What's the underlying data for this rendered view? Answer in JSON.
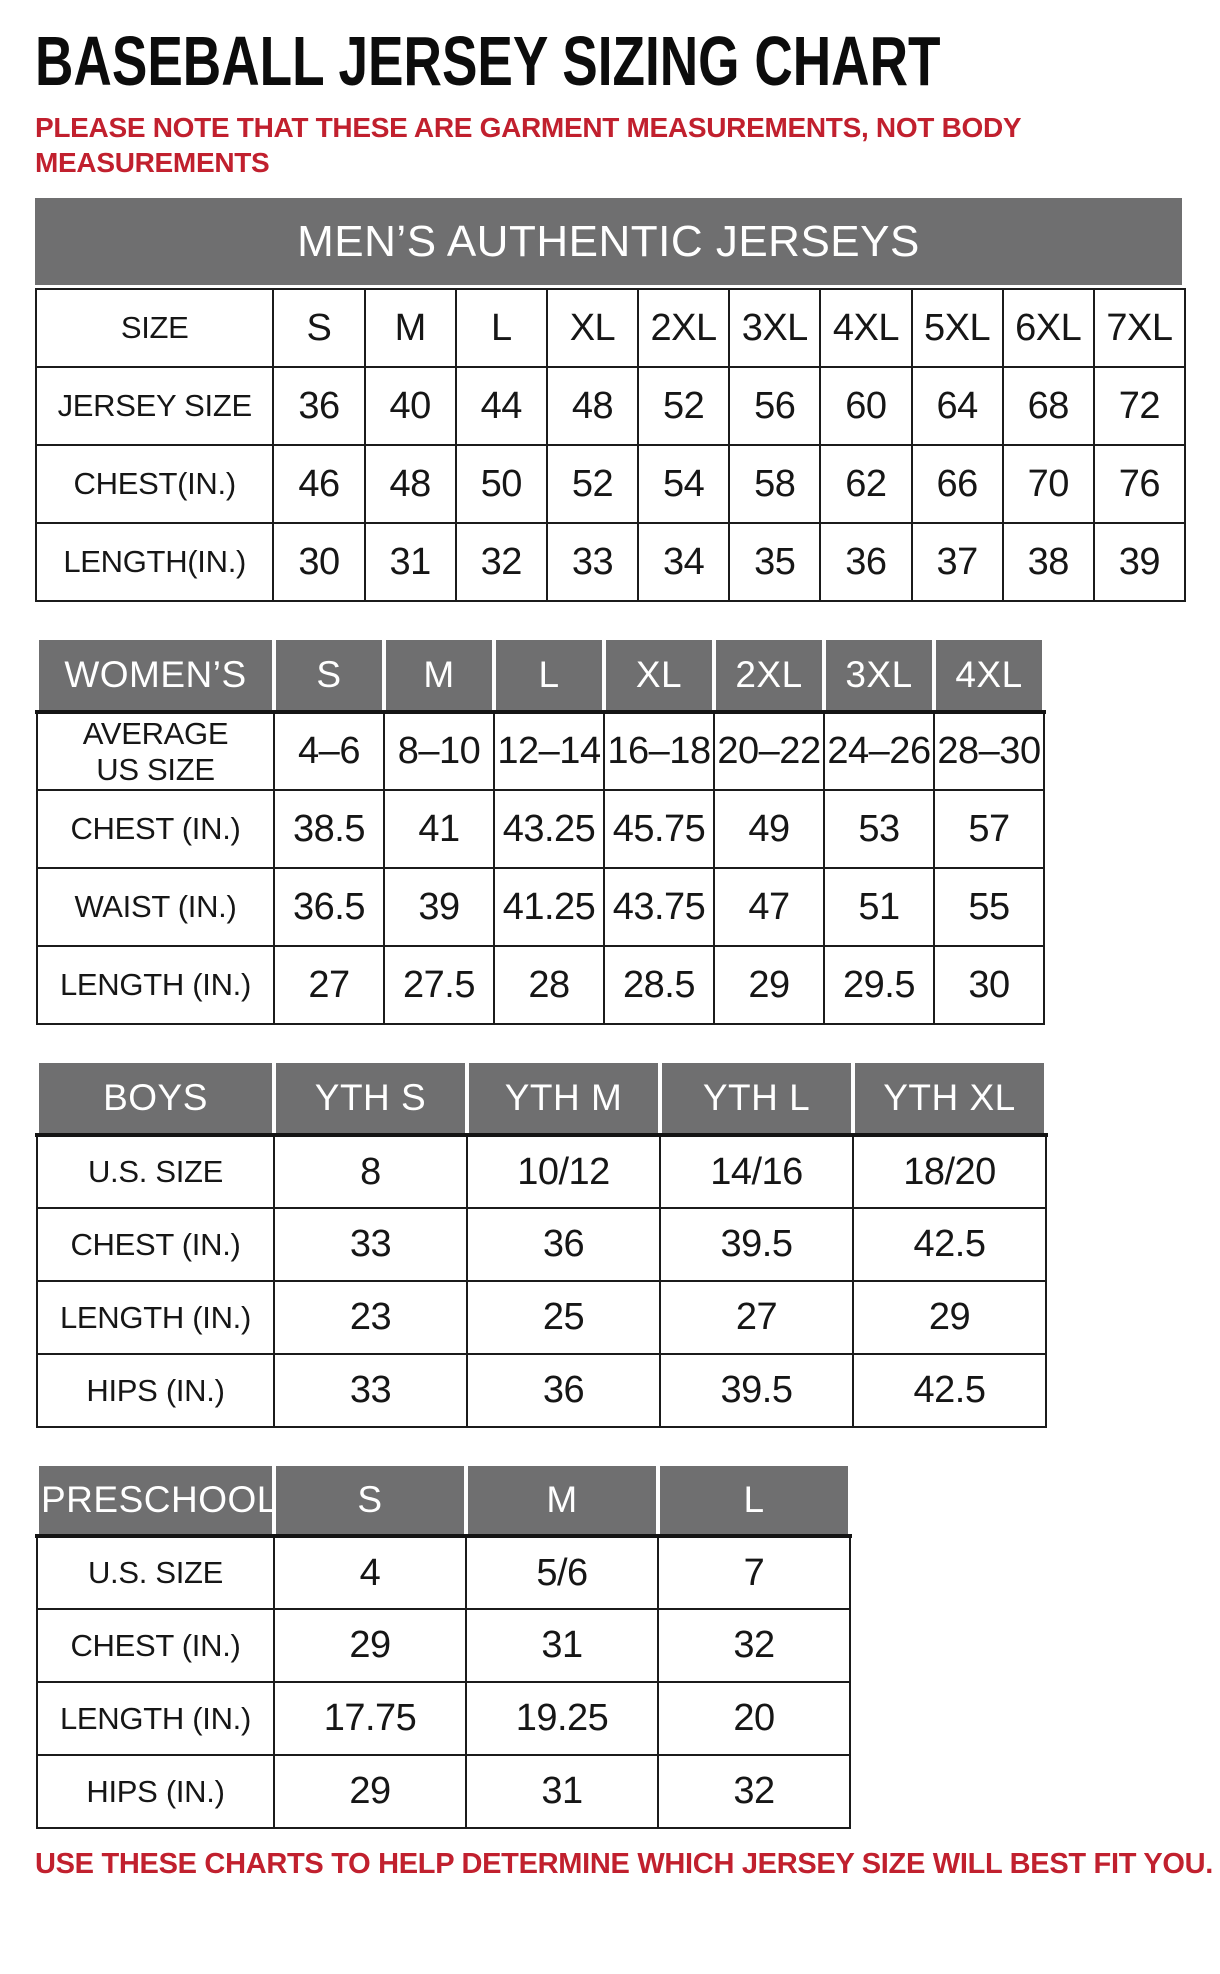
{
  "page": {
    "title": "BASEBALL JERSEY SIZING CHART",
    "note": "PLEASE NOTE THAT THESE ARE GARMENT MEASUREMENTS, NOT BODY\nMEASUREMENTS",
    "footer": "USE THESE CHARTS TO HELP DETERMINE WHICH JERSEY SIZE WILL BEST FIT YOU."
  },
  "colors": {
    "accent_red": "#c1202e",
    "header_gray": "#6f6f70",
    "header_text": "#ffffff",
    "border_black": "#1b1b1b"
  },
  "tables": [
    {
      "id": "mens",
      "banner": "MEN’S AUTHENTIC JERSEYS",
      "rows": [
        [
          "SIZE",
          "S",
          "M",
          "L",
          "XL",
          "2XL",
          "3XL",
          "4XL",
          "5XL",
          "6XL",
          "7XL"
        ],
        [
          "JERSEY SIZE",
          "36",
          "40",
          "44",
          "48",
          "52",
          "56",
          "60",
          "64",
          "68",
          "72"
        ],
        [
          "CHEST(IN.)",
          "46",
          "48",
          "50",
          "52",
          "54",
          "58",
          "62",
          "66",
          "70",
          "76"
        ],
        [
          "LENGTH(IN.)",
          "30",
          "31",
          "32",
          "33",
          "34",
          "35",
          "36",
          "37",
          "38",
          "39"
        ]
      ]
    },
    {
      "id": "womens",
      "header": [
        "WOMEN’S",
        "S",
        "M",
        "L",
        "XL",
        "2XL",
        "3XL",
        "4XL"
      ],
      "rows": [
        [
          "AVERAGE\nUS SIZE",
          "4–6",
          "8–10",
          "12–14",
          "16–18",
          "20–22",
          "24–26",
          "28–30"
        ],
        [
          "CHEST (IN.)",
          "38.5",
          "41",
          "43.25",
          "45.75",
          "49",
          "53",
          "57"
        ],
        [
          "WAIST (IN.)",
          "36.5",
          "39",
          "41.25",
          "43.75",
          "47",
          "51",
          "55"
        ],
        [
          "LENGTH (IN.)",
          "27",
          "27.5",
          "28",
          "28.5",
          "29",
          "29.5",
          "30"
        ]
      ]
    },
    {
      "id": "boys",
      "header": [
        "BOYS",
        "YTH S",
        "YTH M",
        "YTH L",
        "YTH XL"
      ],
      "rows": [
        [
          "U.S. SIZE",
          "8",
          "10/12",
          "14/16",
          "18/20"
        ],
        [
          "CHEST (IN.)",
          "33",
          "36",
          "39.5",
          "42.5"
        ],
        [
          "LENGTH (IN.)",
          "23",
          "25",
          "27",
          "29"
        ],
        [
          "HIPS (IN.)",
          "33",
          "36",
          "39.5",
          "42.5"
        ]
      ]
    },
    {
      "id": "preschool",
      "header": [
        "PRESCHOOL",
        "S",
        "M",
        "L"
      ],
      "rows": [
        [
          "U.S. SIZE",
          "4",
          "5/6",
          "7"
        ],
        [
          "CHEST (IN.)",
          "29",
          "31",
          "32"
        ],
        [
          "LENGTH (IN.)",
          "17.75",
          "19.25",
          "20"
        ],
        [
          "HIPS (IN.)",
          "29",
          "31",
          "32"
        ]
      ]
    }
  ]
}
